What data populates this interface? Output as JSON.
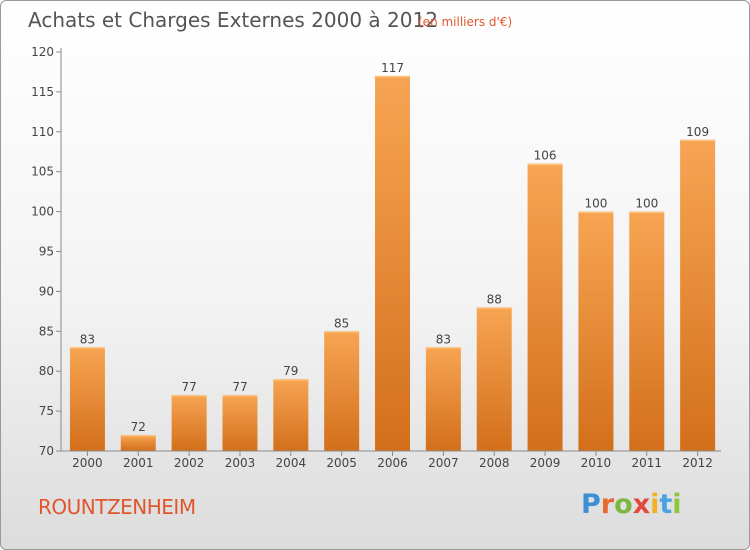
{
  "header": {
    "title": "Achats et Charges Externes 2000 à 2012",
    "subtitle": "(en milliers d'€)"
  },
  "footer": {
    "commune": "ROUNTZENHEIM",
    "logo_letters": [
      "P",
      "r",
      "o",
      "x",
      "i",
      "t",
      "i"
    ],
    "logo_colors": [
      "#3d8fd6",
      "#e8692d",
      "#7cb840",
      "#e14a3a",
      "#f2b125",
      "#4aa3df",
      "#8cc63f"
    ]
  },
  "colors": {
    "bar_top": "#f7a553",
    "bar_bottom": "#d36f1b",
    "subtitle": "#e0572d",
    "text": "#555555"
  },
  "chart_data": {
    "type": "bar",
    "categories": [
      "2000",
      "2001",
      "2002",
      "2003",
      "2004",
      "2005",
      "2006",
      "2007",
      "2008",
      "2009",
      "2010",
      "2011",
      "2012"
    ],
    "values": [
      83,
      72,
      77,
      77,
      79,
      85,
      117,
      83,
      88,
      106,
      100,
      100,
      109
    ],
    "data_labels": [
      "83",
      "72",
      "77",
      "77",
      "79",
      "85",
      "117",
      "83",
      "88",
      "106",
      "100",
      "100",
      "109"
    ],
    "ylim": [
      70,
      120
    ],
    "yticks": [
      70,
      75,
      80,
      85,
      90,
      95,
      100,
      105,
      110,
      115,
      120
    ],
    "grid": false,
    "xlabel": "",
    "ylabel": ""
  }
}
